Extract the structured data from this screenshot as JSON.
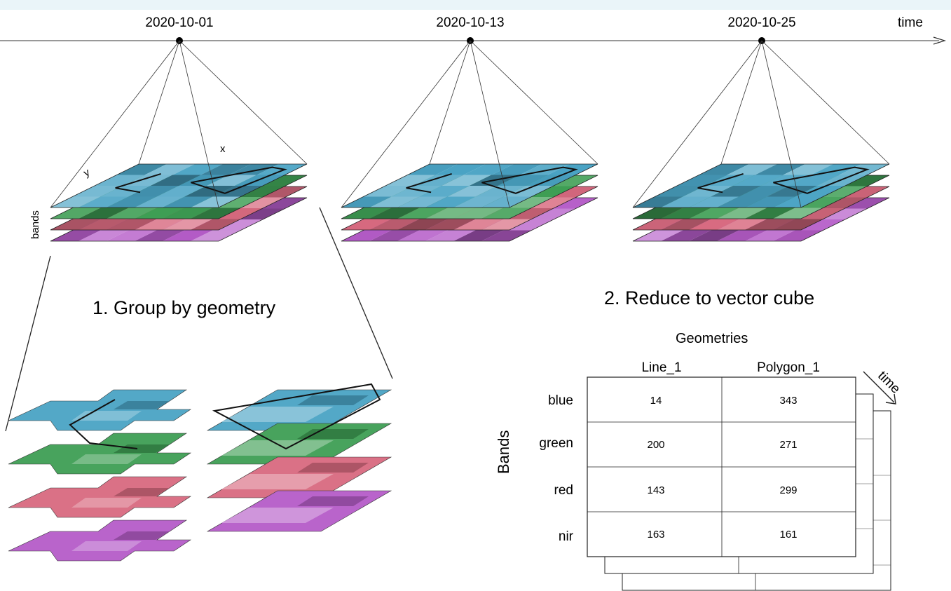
{
  "timeline": {
    "dates": [
      "2020-10-01",
      "2020-10-13",
      "2020-10-25"
    ],
    "axis_label": "time"
  },
  "cube_axes": {
    "x": "x",
    "y": "y",
    "bands": "bands"
  },
  "step1": {
    "title": "1. Group by geometry"
  },
  "step2": {
    "title": "2. Reduce to vector cube",
    "geometries_label": "Geometries",
    "bands_label": "Bands",
    "time_label": "time",
    "columns": [
      "Line_1",
      "Polygon_1"
    ],
    "rows": [
      {
        "band": "blue",
        "values": [
          "14",
          "343"
        ]
      },
      {
        "band": "green",
        "values": [
          "200",
          "271"
        ]
      },
      {
        "band": "red",
        "values": [
          "143",
          "299"
        ]
      },
      {
        "band": "nir",
        "values": [
          "163",
          "161"
        ]
      }
    ]
  },
  "colors": {
    "blue": "#4aa3c4",
    "green": "#3e9e54",
    "red": "#d86a80",
    "purple": "#b55cc8"
  }
}
